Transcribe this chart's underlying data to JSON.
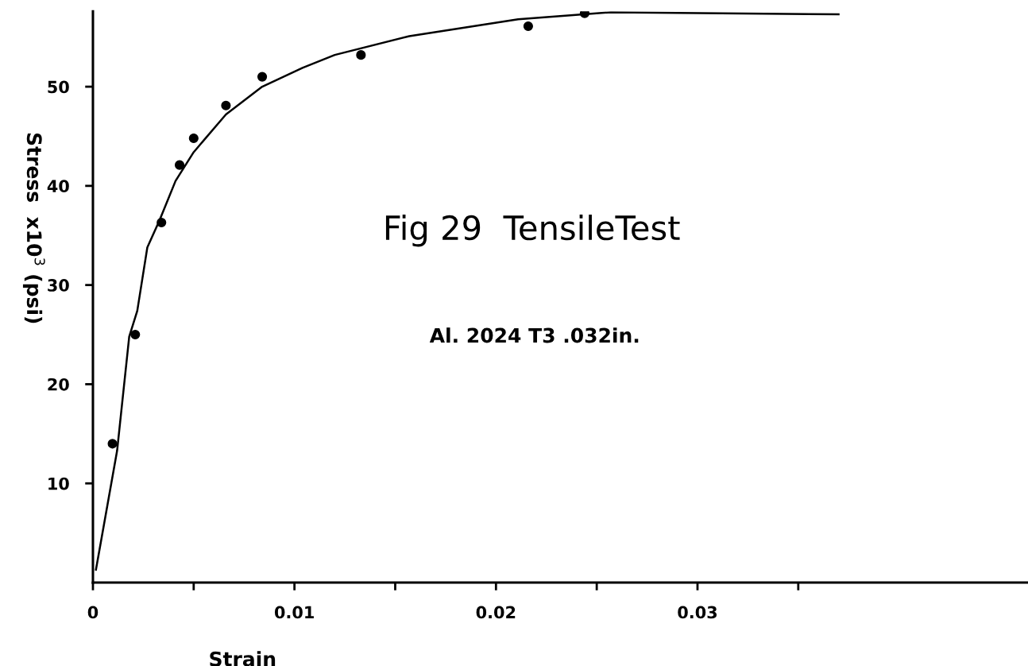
{
  "chart_data": {
    "type": "scatter",
    "title": "Fig 29  TensileTest",
    "subtitle": "Al. 2024 T3 .032in.",
    "xlabel": "Strain",
    "ylabel": "Stress  x10$^{3}$ (psi)",
    "series": [
      {
        "color": "#000000",
        "marker": "circle",
        "x": [
          0.00097,
          0.0021,
          0.0034,
          0.0043,
          0.005,
          0.0066,
          0.0084,
          0.0133,
          0.0216,
          0.0244
        ],
        "values": [
          14.0,
          25.0,
          36.3,
          42.1,
          44.8,
          48.1,
          51.0,
          53.2,
          56.1,
          57.4
        ]
      },
      {
        "type": "line",
        "color": "#000000",
        "line_style": "solid",
        "x": [
          0.00015,
          0.0012,
          0.0018,
          0.0022,
          0.0027,
          0.0033,
          0.0041,
          0.005,
          0.0066,
          0.0084,
          0.0104,
          0.012,
          0.0157,
          0.0211,
          0.0237,
          0.0257,
          0.037
        ],
        "values": [
          1.3,
          13.3,
          24.8,
          27.4,
          33.8,
          36.5,
          40.5,
          43.4,
          47.2,
          50.0,
          51.9,
          53.2,
          55.1,
          56.8,
          57.2,
          57.5,
          57.3
        ]
      }
    ],
    "xlim": [
      0,
      0.0464
    ],
    "ylim": [
      0,
      57.6
    ],
    "xticks": [
      0,
      {
        "value": 0.005,
        "label": null
      },
      {
        "value": 0.01,
        "label": "0.01"
      },
      {
        "value": 0.015,
        "label": null
      },
      {
        "value": 0.02,
        "label": "0.02"
      },
      {
        "value": 0.025,
        "label": null
      },
      {
        "value": 0.03,
        "label": "0.03"
      },
      {
        "value": 0.035,
        "label": null
      }
    ],
    "yticks": [
      10,
      20,
      30,
      40,
      50
    ],
    "grid": false
  }
}
